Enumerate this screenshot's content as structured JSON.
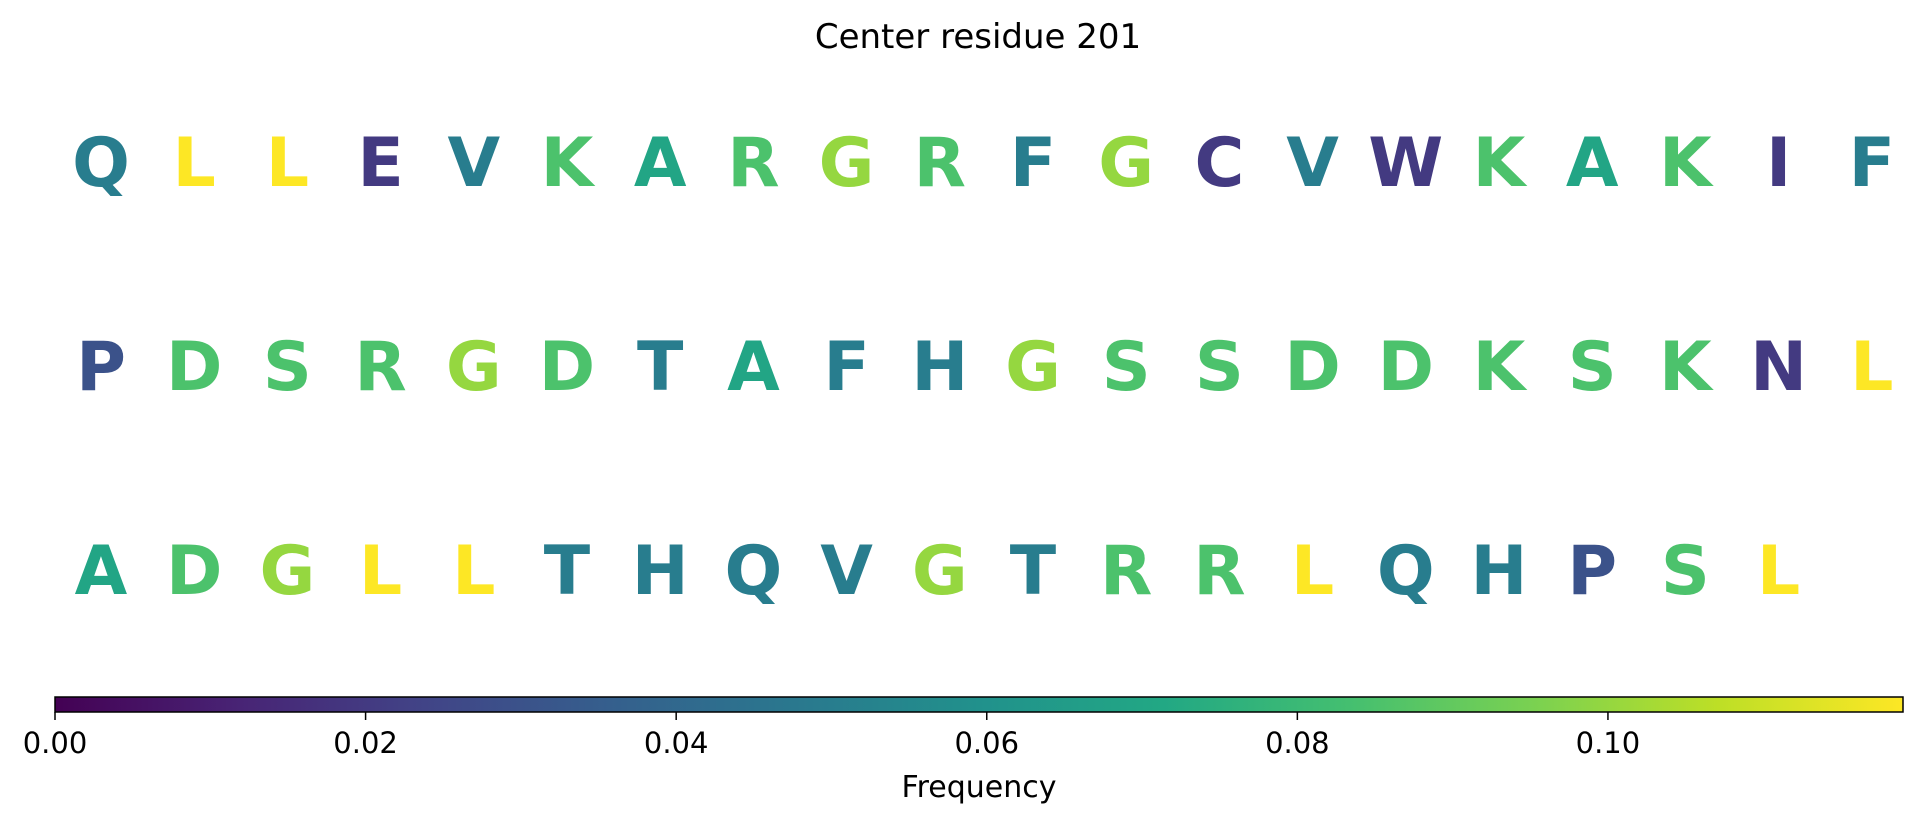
{
  "chart_data": {
    "type": "heatmap",
    "title": "Center residue 201",
    "rows": [
      [
        "Q",
        "L",
        "L",
        "E",
        "V",
        "K",
        "A",
        "R",
        "G",
        "R",
        "F",
        "G",
        "C",
        "V",
        "W",
        "K",
        "A",
        "K",
        "I",
        "F"
      ],
      [
        "P",
        "D",
        "S",
        "R",
        "G",
        "D",
        "T",
        "A",
        "F",
        "H",
        "G",
        "S",
        "S",
        "D",
        "D",
        "K",
        "S",
        "K",
        "N",
        "L"
      ],
      [
        "A",
        "D",
        "G",
        "L",
        "L",
        "T",
        "H",
        "Q",
        "V",
        "G",
        "T",
        "R",
        "R",
        "L",
        "Q",
        "H",
        "P",
        "S",
        "L"
      ]
    ],
    "residue_frequency": {
      "A": 0.07,
      "C": 0.02,
      "D": 0.085,
      "E": 0.02,
      "F": 0.05,
      "G": 0.1,
      "H": 0.05,
      "I": 0.02,
      "K": 0.085,
      "L": 0.12,
      "N": 0.02,
      "P": 0.03,
      "Q": 0.05,
      "R": 0.085,
      "S": 0.085,
      "T": 0.05,
      "V": 0.05,
      "W": 0.02
    },
    "colorbar": {
      "label": "Frequency",
      "colormap": "viridis",
      "range": [
        0,
        0.119
      ],
      "ticks": [
        0.0,
        0.02,
        0.04,
        0.06,
        0.08,
        0.1
      ],
      "tick_labels": [
        "0.00",
        "0.02",
        "0.04",
        "0.06",
        "0.08",
        "0.10"
      ]
    }
  }
}
